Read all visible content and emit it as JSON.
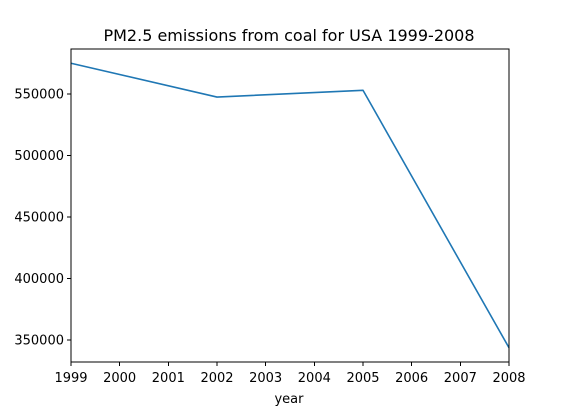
{
  "chart_data": {
    "type": "line",
    "title": "PM2.5 emissions from coal for USA 1999-2008",
    "xlabel": "year",
    "ylabel": "",
    "x": [
      1999,
      2002,
      2005,
      2008
    ],
    "series": [
      {
        "values": [
          575000,
          547500,
          553000,
          343500
        ],
        "color": "#1f77b4"
      }
    ],
    "xlim": [
      1999,
      2008
    ],
    "ylim": [
      331900,
      586600
    ],
    "xticks": [
      "1999",
      "2000",
      "2001",
      "2002",
      "2003",
      "2004",
      "2005",
      "2006",
      "2007",
      "2008"
    ],
    "yticks": [
      "350000",
      "400000",
      "450000",
      "500000",
      "550000"
    ],
    "grid": false,
    "legend": "none"
  }
}
